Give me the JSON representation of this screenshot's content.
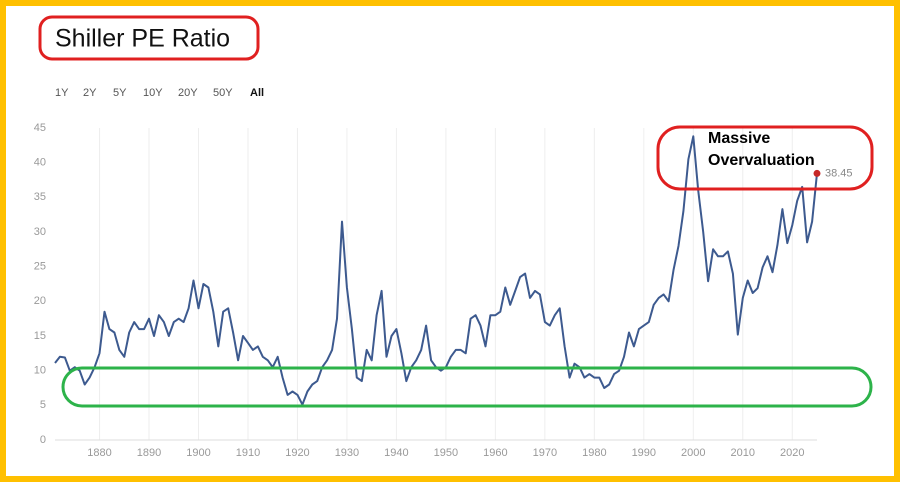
{
  "chart_data": {
    "type": "line",
    "title": "Shiller PE Ratio",
    "range_buttons": [
      "1Y",
      "2Y",
      "5Y",
      "10Y",
      "20Y",
      "50Y",
      "All"
    ],
    "annotation": [
      "Massive",
      "Overvaluation"
    ],
    "x": [
      1871,
      1872,
      1873,
      1874,
      1875,
      1876,
      1877,
      1878,
      1879,
      1880,
      1881,
      1882,
      1883,
      1884,
      1885,
      1886,
      1887,
      1888,
      1889,
      1890,
      1891,
      1892,
      1893,
      1894,
      1895,
      1896,
      1897,
      1898,
      1899,
      1900,
      1901,
      1902,
      1903,
      1904,
      1905,
      1906,
      1907,
      1908,
      1909,
      1910,
      1911,
      1912,
      1913,
      1914,
      1915,
      1916,
      1917,
      1918,
      1919,
      1920,
      1921,
      1922,
      1923,
      1924,
      1925,
      1926,
      1927,
      1928,
      1929,
      1930,
      1931,
      1932,
      1933,
      1934,
      1935,
      1936,
      1937,
      1938,
      1939,
      1940,
      1941,
      1942,
      1943,
      1944,
      1945,
      1946,
      1947,
      1948,
      1949,
      1950,
      1951,
      1952,
      1953,
      1954,
      1955,
      1956,
      1957,
      1958,
      1959,
      1960,
      1961,
      1962,
      1963,
      1964,
      1965,
      1966,
      1967,
      1968,
      1969,
      1970,
      1971,
      1972,
      1973,
      1974,
      1975,
      1976,
      1977,
      1978,
      1979,
      1980,
      1981,
      1982,
      1983,
      1984,
      1985,
      1986,
      1987,
      1988,
      1989,
      1990,
      1991,
      1992,
      1993,
      1994,
      1995,
      1996,
      1997,
      1998,
      1999,
      2000,
      2001,
      2002,
      2003,
      2004,
      2005,
      2006,
      2007,
      2008,
      2009,
      2010,
      2011,
      2012,
      2013,
      2014,
      2015,
      2016,
      2017,
      2018,
      2019,
      2020,
      2021,
      2022,
      2023,
      2024,
      2025
    ],
    "values": [
      11.1,
      12.0,
      11.9,
      10.0,
      10.5,
      10.0,
      8.0,
      9.0,
      10.5,
      12.5,
      18.5,
      16,
      15.5,
      13,
      12,
      15.5,
      17,
      16,
      16,
      17.5,
      15,
      18,
      17,
      15,
      17,
      17.5,
      17,
      19,
      23,
      19,
      22.5,
      22,
      18.5,
      13.5,
      18.5,
      19,
      15.5,
      11.5,
      15,
      14,
      13,
      13.5,
      12,
      11.5,
      10.5,
      12,
      9,
      6.5,
      7,
      6.5,
      5.1,
      7,
      8,
      8.5,
      10.5,
      11.5,
      13,
      17.5,
      31.5,
      22,
      16,
      9,
      8.5,
      13,
      11.5,
      18,
      21.5,
      12,
      15,
      16,
      12.5,
      8.5,
      10.5,
      11.5,
      13,
      16.5,
      11.5,
      10.5,
      10,
      10.5,
      12,
      13,
      13,
      12.5,
      17.5,
      18,
      16.5,
      13.5,
      18,
      18,
      18.5,
      22,
      19.5,
      21.5,
      23.5,
      24,
      20.5,
      21.5,
      21,
      17,
      16.5,
      18,
      19,
      13.5,
      9,
      11,
      10.5,
      9,
      9.5,
      9,
      9,
      7.5,
      8,
      9.5,
      10,
      12,
      15.5,
      13.5,
      16,
      16.5,
      17,
      19.5,
      20.5,
      21,
      20,
      24.5,
      28,
      33,
      40.5,
      43.8,
      36,
      30,
      22.9,
      27.5,
      26.5,
      26.5,
      27.2,
      24,
      15.2,
      20.5,
      23,
      21.2,
      21.9,
      24.9,
      26.5,
      24.2,
      28.1,
      33.3,
      28.4,
      31,
      34.5,
      36.5,
      28.5,
      31.5,
      38.45
    ],
    "color": "#3d5a8f",
    "last_point_color": "#c62828",
    "xlim": [
      1871,
      2025
    ],
    "xticks": [
      1880,
      1890,
      1900,
      1910,
      1920,
      1930,
      1940,
      1950,
      1960,
      1970,
      1980,
      1990,
      2000,
      2010,
      2020
    ],
    "ylim": [
      0,
      45
    ],
    "yticks": [
      0,
      5,
      10,
      15,
      20,
      25,
      30,
      35,
      40,
      45
    ],
    "grid": true
  }
}
